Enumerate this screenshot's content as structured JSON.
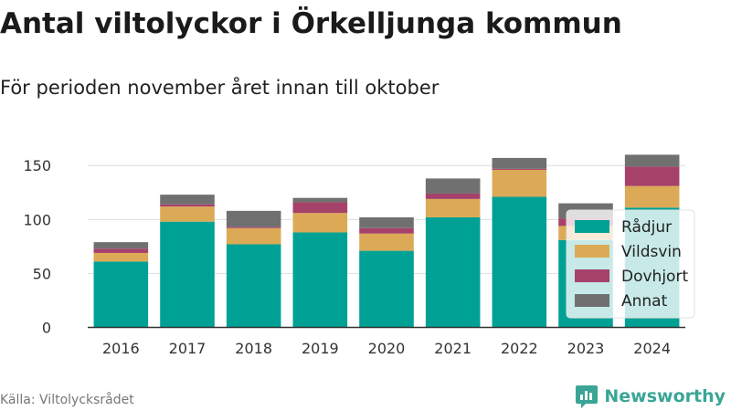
{
  "header": {
    "title": "Antal viltolyckor i Örkelljunga kommun",
    "subtitle": "För perioden november året innan till oktober"
  },
  "footer": {
    "source": "Källa: Viltolycksrådet",
    "brand": "Newsworthy",
    "brand_icon": "newsworthy-logo-icon"
  },
  "chart_data": {
    "type": "bar",
    "stacked": true,
    "categories": [
      "2016",
      "2017",
      "2018",
      "2019",
      "2020",
      "2021",
      "2022",
      "2023",
      "2024"
    ],
    "series": [
      {
        "name": "Rådjur",
        "color": "#00a195",
        "values": [
          61,
          98,
          77,
          88,
          71,
          102,
          121,
          81,
          111
        ]
      },
      {
        "name": "Vildsvin",
        "color": "#dcaa57",
        "values": [
          8,
          14,
          15,
          18,
          16,
          17,
          25,
          13,
          20
        ]
      },
      {
        "name": "Dovhjort",
        "color": "#a6416a",
        "values": [
          4,
          2,
          1,
          10,
          5,
          5,
          1,
          7,
          18
        ]
      },
      {
        "name": "Annat",
        "color": "#707070",
        "values": [
          6,
          9,
          15,
          4,
          10,
          14,
          10,
          14,
          11
        ]
      }
    ],
    "yticks": [
      0,
      50,
      100,
      150
    ],
    "ylim": [
      0,
      165
    ],
    "grid": true,
    "legend": "right"
  }
}
